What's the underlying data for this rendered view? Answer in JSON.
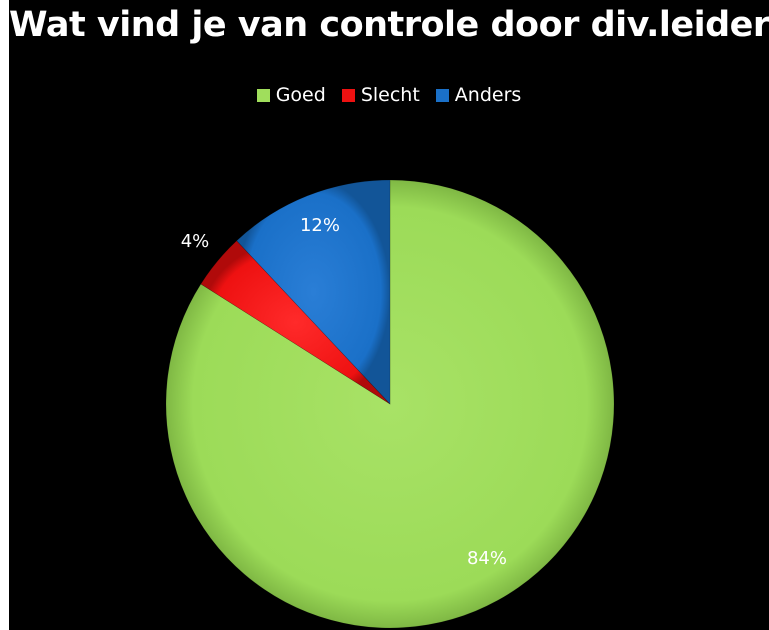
{
  "chart_data": {
    "type": "pie",
    "title": "Wat vind je van controle door div.leider?",
    "legend_position": "top",
    "categories": [
      "Goed",
      "Slecht",
      "Anders"
    ],
    "values": [
      84,
      4,
      12
    ],
    "data_labels": [
      "84%",
      "4%",
      "12%"
    ],
    "colors": [
      "#a0de5c",
      "#ee1111",
      "#1a70c8"
    ],
    "start_angle_deg": 0,
    "direction": "clockwise"
  }
}
